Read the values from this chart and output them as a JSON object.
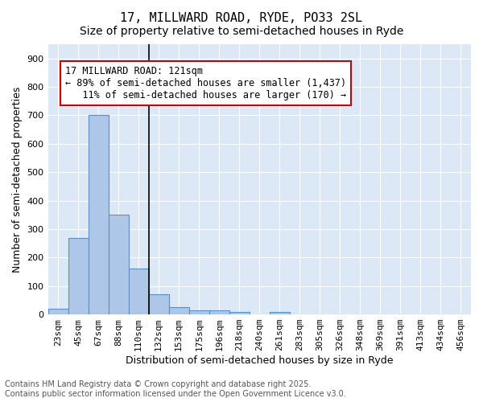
{
  "title": "17, MILLWARD ROAD, RYDE, PO33 2SL",
  "subtitle": "Size of property relative to semi-detached houses in Ryde",
  "xlabel": "Distribution of semi-detached houses by size in Ryde",
  "ylabel": "Number of semi-detached properties",
  "bar_values": [
    20,
    270,
    700,
    350,
    160,
    70,
    25,
    15,
    15,
    10,
    0,
    10,
    0,
    0,
    0,
    0,
    0,
    0,
    0,
    0,
    0
  ],
  "categories": [
    "23sqm",
    "45sqm",
    "67sqm",
    "88sqm",
    "110sqm",
    "132sqm",
    "153sqm",
    "175sqm",
    "196sqm",
    "218sqm",
    "240sqm",
    "261sqm",
    "283sqm",
    "305sqm",
    "326sqm",
    "348sqm",
    "369sqm",
    "391sqm",
    "413sqm",
    "434sqm",
    "456sqm"
  ],
  "bar_color": "#aec6e8",
  "bar_edge_color": "#5b8fc9",
  "marker_line_color": "#000000",
  "annotation_text": "17 MILLWARD ROAD: 121sqm\n← 89% of semi-detached houses are smaller (1,437)\n   11% of semi-detached houses are larger (170) →",
  "annotation_box_color": "#ffffff",
  "annotation_box_edge_color": "#cc0000",
  "ylim": [
    0,
    950
  ],
  "yticks": [
    0,
    100,
    200,
    300,
    400,
    500,
    600,
    700,
    800,
    900
  ],
  "background_color": "#dce8f5",
  "footer_text": "Contains HM Land Registry data © Crown copyright and database right 2025.\nContains public sector information licensed under the Open Government Licence v3.0.",
  "title_fontsize": 11,
  "subtitle_fontsize": 10,
  "xlabel_fontsize": 9,
  "ylabel_fontsize": 9,
  "tick_fontsize": 8,
  "annotation_fontsize": 8.5,
  "footer_fontsize": 7
}
